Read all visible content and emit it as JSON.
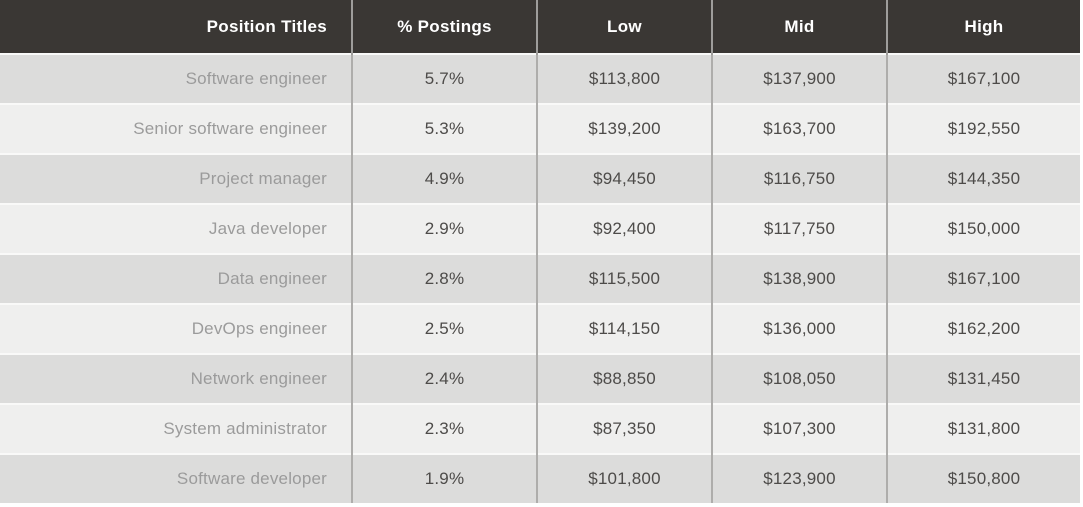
{
  "chart_data": {
    "type": "table",
    "columns": [
      "Position Titles",
      "% Postings",
      "Low",
      "Mid",
      "High"
    ],
    "rows": [
      [
        "Software engineer",
        "5.7%",
        "$113,800",
        "$137,900",
        "$167,100"
      ],
      [
        "Senior software engineer",
        "5.3%",
        "$139,200",
        "$163,700",
        "$192,550"
      ],
      [
        "Project manager",
        "4.9%",
        "$94,450",
        "$116,750",
        "$144,350"
      ],
      [
        "Java developer",
        "2.9%",
        "$92,400",
        "$117,750",
        "$150,000"
      ],
      [
        "Data engineer",
        "2.8%",
        "$115,500",
        "$138,900",
        "$167,100"
      ],
      [
        "DevOps engineer",
        "2.5%",
        "$114,150",
        "$136,000",
        "$162,200"
      ],
      [
        "Network engineer",
        "2.4%",
        "$88,850",
        "$108,050",
        "$131,450"
      ],
      [
        "System administrator",
        "2.3%",
        "$87,350",
        "$107,300",
        "$131,800"
      ],
      [
        "Software developer",
        "1.9%",
        "$101,800",
        "$123,900",
        "$150,800"
      ]
    ]
  },
  "colors": {
    "header_bg": "#3a3734",
    "header_text": "#ffffff",
    "row_odd_bg": "#dcdcdb",
    "row_even_bg": "#efefee",
    "title_text": "#9b9b9b",
    "value_text": "#4d4b49",
    "column_divider": "#aeadab",
    "row_divider": "#f9f9f8"
  }
}
